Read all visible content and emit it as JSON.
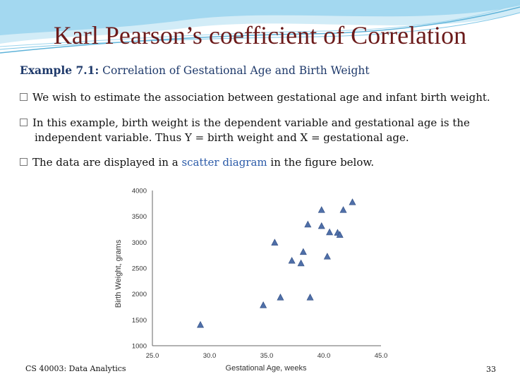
{
  "slide": {
    "title": "Karl Pearson’s coefficient of Correlation",
    "example_label": "Example 7.1:",
    "example_text": " Correlation of Gestational Age and Birth Weight",
    "bullet1": "We wish to estimate the association between gestational age and infant birth weight.",
    "bullet2_line1": "In this example, birth weight is the dependent variable and gestational age is the",
    "bullet2_line2": "independent variable. Thus Y = birth weight and X = gestational age.",
    "bullet3_pre": "The data are displayed in a ",
    "bullet3_link": "scatter diagram",
    "bullet3_post": " in the figure below.",
    "footer": "CS 40003: Data Analytics",
    "page_number": "33",
    "colors": {
      "title": "#6b1a1a",
      "heading": "#1f3a6b",
      "link": "#2a5aa8",
      "marker": "#4f6fa8",
      "wave": "#7ec6e6"
    }
  },
  "chart_data": {
    "type": "scatter",
    "xlabel": "Gestational Age, weeks",
    "ylabel": "Birth Weight, grams",
    "xlim": [
      25,
      45
    ],
    "ylim": [
      1000,
      4000
    ],
    "xticks": [
      "25.0",
      "30.0",
      "35.0",
      "40.0",
      "45.0"
    ],
    "yticks": [
      "1000",
      "1500",
      "2000",
      "2500",
      "3000",
      "3500",
      "4000"
    ],
    "grid": false,
    "marker": "triangle",
    "points": [
      {
        "x": 29.2,
        "y": 1400
      },
      {
        "x": 34.7,
        "y": 1780
      },
      {
        "x": 36.2,
        "y": 1930
      },
      {
        "x": 38.8,
        "y": 1930
      },
      {
        "x": 35.7,
        "y": 2990
      },
      {
        "x": 37.2,
        "y": 2640
      },
      {
        "x": 38.0,
        "y": 2590
      },
      {
        "x": 38.2,
        "y": 2810
      },
      {
        "x": 40.3,
        "y": 2720
      },
      {
        "x": 38.6,
        "y": 3340
      },
      {
        "x": 39.8,
        "y": 3310
      },
      {
        "x": 40.5,
        "y": 3190
      },
      {
        "x": 41.2,
        "y": 3180
      },
      {
        "x": 41.4,
        "y": 3140
      },
      {
        "x": 39.8,
        "y": 3620
      },
      {
        "x": 41.7,
        "y": 3620
      },
      {
        "x": 42.5,
        "y": 3770
      }
    ]
  }
}
